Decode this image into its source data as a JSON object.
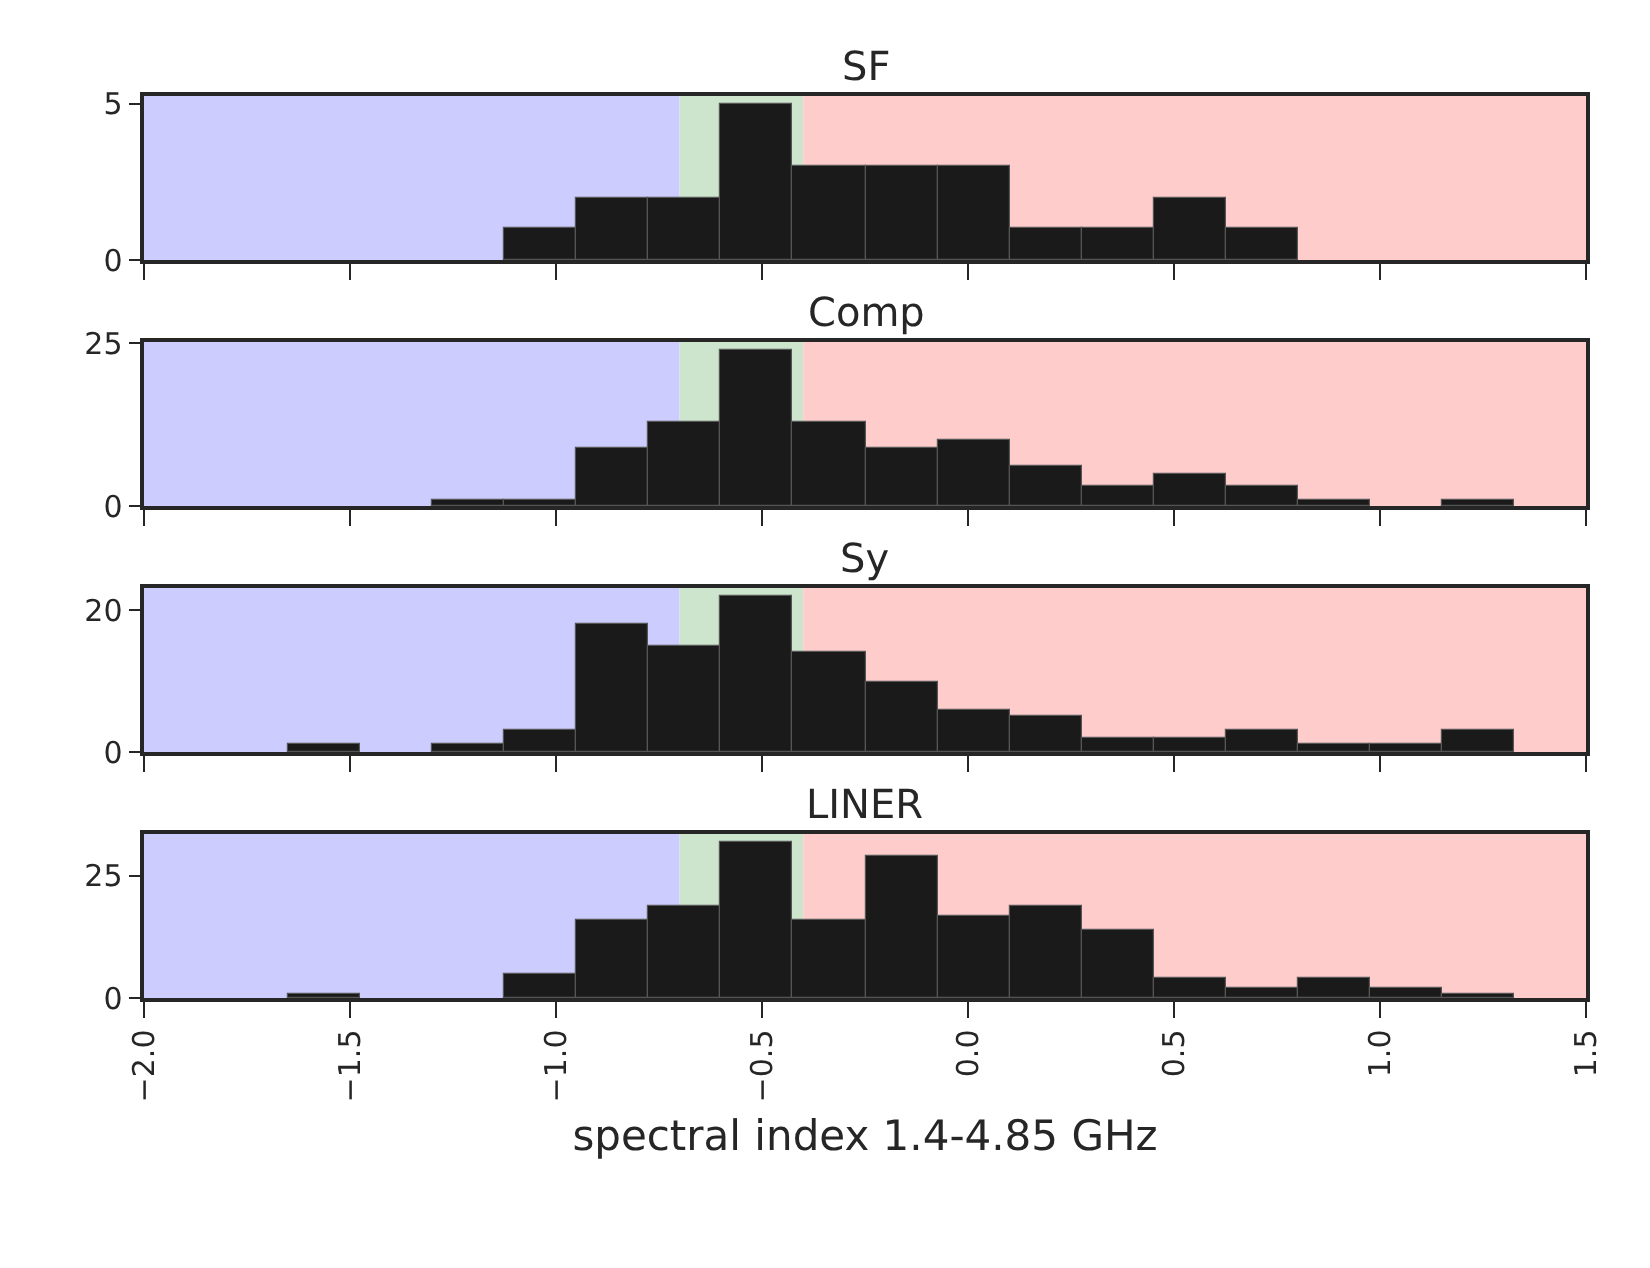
{
  "chart_data": [
    {
      "type": "histogram",
      "title": "SF",
      "bins": [
        -1.65,
        -1.475,
        -1.3,
        -1.125,
        -0.95,
        -0.775,
        -0.6,
        -0.425,
        -0.25,
        -0.075,
        0.1,
        0.275,
        0.45,
        0.625,
        0.8,
        0.975,
        1.15,
        1.325
      ],
      "values": [
        0,
        0,
        0,
        1,
        2,
        2,
        5,
        3,
        3,
        3,
        1,
        1,
        2,
        1,
        0,
        0,
        0
      ],
      "color": "#1a1a1a",
      "xlim": [
        -2,
        1.5
      ],
      "xticks": [
        {
          "value": -2,
          "label": null
        },
        {
          "value": -1.5,
          "label": null
        },
        {
          "value": -1,
          "label": null
        },
        {
          "value": -0.5,
          "label": null
        },
        {
          "value": 0,
          "label": null
        },
        {
          "value": 0.5,
          "label": null
        },
        {
          "value": 1,
          "label": null
        },
        {
          "value": 1.5,
          "label": null
        }
      ],
      "ylim": [
        0,
        5.25
      ],
      "yticks": [
        0,
        5
      ],
      "tick_labels": "y",
      "bands": [
        {
          "axis": "x",
          "from": -2,
          "to": -0.7,
          "color": "#ccccff"
        },
        {
          "axis": "x",
          "from": -0.7,
          "to": -0.4,
          "color": "#cce5cc"
        },
        {
          "axis": "x",
          "from": -0.4,
          "to": 1.5,
          "color": "#ffcccc"
        }
      ]
    },
    {
      "type": "histogram",
      "title": "Comp",
      "bins": [
        -1.65,
        -1.475,
        -1.3,
        -1.125,
        -0.95,
        -0.775,
        -0.6,
        -0.425,
        -0.25,
        -0.075,
        0.1,
        0.275,
        0.45,
        0.625,
        0.8,
        0.975,
        1.15,
        1.325
      ],
      "values": [
        0,
        0,
        1,
        1,
        9,
        13,
        24,
        13,
        9,
        10,
        6,
        3,
        5,
        3,
        1,
        0,
        1
      ],
      "color": "#1a1a1a",
      "xlim": [
        -2,
        1.5
      ],
      "xticks": [
        {
          "value": -2,
          "label": null
        },
        {
          "value": -1.5,
          "label": null
        },
        {
          "value": -1,
          "label": null
        },
        {
          "value": -0.5,
          "label": null
        },
        {
          "value": 0,
          "label": null
        },
        {
          "value": 0.5,
          "label": null
        },
        {
          "value": 1,
          "label": null
        },
        {
          "value": 1.5,
          "label": null
        }
      ],
      "ylim": [
        0,
        25.2
      ],
      "yticks": [
        0,
        25
      ],
      "tick_labels": "y",
      "bands": [
        {
          "axis": "x",
          "from": -2,
          "to": -0.7,
          "color": "#ccccff"
        },
        {
          "axis": "x",
          "from": -0.7,
          "to": -0.4,
          "color": "#cce5cc"
        },
        {
          "axis": "x",
          "from": -0.4,
          "to": 1.5,
          "color": "#ffcccc"
        }
      ]
    },
    {
      "type": "histogram",
      "title": "Sy",
      "bins": [
        -1.65,
        -1.475,
        -1.3,
        -1.125,
        -0.95,
        -0.775,
        -0.6,
        -0.425,
        -0.25,
        -0.075,
        0.1,
        0.275,
        0.45,
        0.625,
        0.8,
        0.975,
        1.15,
        1.325
      ],
      "values": [
        1,
        0,
        1,
        3,
        18,
        15,
        22,
        14,
        10,
        6,
        5,
        2,
        2,
        3,
        1,
        1,
        3
      ],
      "color": "#1a1a1a",
      "xlim": [
        -2,
        1.5
      ],
      "xticks": [
        {
          "value": -2,
          "label": null
        },
        {
          "value": -1.5,
          "label": null
        },
        {
          "value": -1,
          "label": null
        },
        {
          "value": -0.5,
          "label": null
        },
        {
          "value": 0,
          "label": null
        },
        {
          "value": 0.5,
          "label": null
        },
        {
          "value": 1,
          "label": null
        },
        {
          "value": 1.5,
          "label": null
        }
      ],
      "ylim": [
        0,
        23.1
      ],
      "yticks": [
        0,
        20
      ],
      "tick_labels": "y",
      "bands": [
        {
          "axis": "x",
          "from": -2,
          "to": -0.7,
          "color": "#ccccff"
        },
        {
          "axis": "x",
          "from": -0.7,
          "to": -0.4,
          "color": "#cce5cc"
        },
        {
          "axis": "x",
          "from": -0.4,
          "to": 1.5,
          "color": "#ffcccc"
        }
      ]
    },
    {
      "type": "histogram",
      "title": "LINER",
      "xlabel": "spectral index 1.4-4.85 GHz",
      "bins": [
        -1.65,
        -1.475,
        -1.3,
        -1.125,
        -0.95,
        -0.775,
        -0.6,
        -0.425,
        -0.25,
        -0.075,
        0.1,
        0.275,
        0.45,
        0.625,
        0.8,
        0.975,
        1.15,
        1.325
      ],
      "values": [
        1,
        0,
        0,
        5,
        16,
        19,
        32,
        16,
        29,
        17,
        19,
        14,
        4,
        2,
        4,
        2,
        1
      ],
      "color": "#1a1a1a",
      "xlim": [
        -2,
        1.5
      ],
      "xticks": [
        {
          "value": -2,
          "label": "−2.0"
        },
        {
          "value": -1.5,
          "label": "−1.5"
        },
        {
          "value": -1,
          "label": "−1.0"
        },
        {
          "value": -0.5,
          "label": "−0.5"
        },
        {
          "value": 0,
          "label": "0.0"
        },
        {
          "value": 0.5,
          "label": "0.5"
        },
        {
          "value": 1,
          "label": "1.0"
        },
        {
          "value": 1.5,
          "label": "1.5"
        }
      ],
      "ylim": [
        0,
        33.6
      ],
      "yticks": [
        0,
        25
      ],
      "bands": [
        {
          "axis": "x",
          "from": -2,
          "to": -0.7,
          "color": "#ccccff"
        },
        {
          "axis": "x",
          "from": -0.7,
          "to": -0.4,
          "color": "#cce5cc"
        },
        {
          "axis": "x",
          "from": -0.4,
          "to": 1.5,
          "color": "#ffcccc"
        }
      ]
    }
  ]
}
